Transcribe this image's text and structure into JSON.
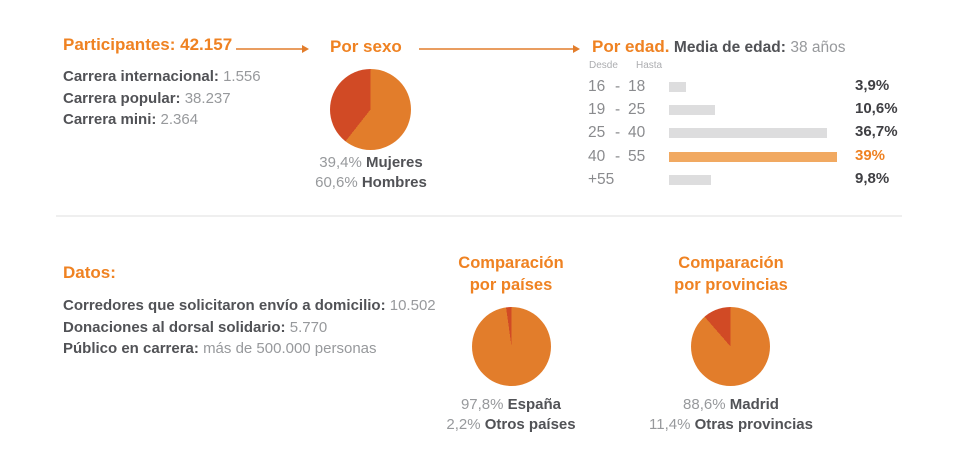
{
  "colors": {
    "heading_orange": "#EF8222",
    "pie_orange": "#E27D2B",
    "pie_red": "#D14A25",
    "bar_highlight": "#F1A961",
    "bar_gray": "#DDDDDE",
    "label_dark": "#515256",
    "value_gray": "#97999C",
    "age_num_gray": "#8A8B8E",
    "pct_dark": "#3F3F43",
    "col_header_gray": "#ACADB0",
    "divider": "#EFEFEF"
  },
  "top": {
    "participants": {
      "title": "Participantes: 42.157",
      "rows": [
        {
          "label": "Carrera internacional:",
          "value": "1.556"
        },
        {
          "label": "Carrera popular:",
          "value": "38.237"
        },
        {
          "label": "Carrera mini:",
          "value": "2.364"
        }
      ]
    },
    "by_sex": {
      "title": "Por sexo",
      "slices": [
        {
          "label": "Hombres",
          "value": 60.6,
          "color": "#E27D2B"
        },
        {
          "label": "Mujeres",
          "value": 39.4,
          "color": "#D14A25"
        }
      ],
      "legend": [
        {
          "pct": "39,4%",
          "label": "Mujeres"
        },
        {
          "pct": "60,6%",
          "label": "Hombres"
        }
      ]
    },
    "by_age": {
      "title": "Por edad.",
      "avg_label": "Media de edad:",
      "avg_value": "38 años",
      "col_from": "Desde",
      "col_to": "Hasta",
      "rows": [
        {
          "from": "16",
          "dash": "-",
          "to": "18",
          "value": 3.9,
          "pct": "3,9%",
          "highlight": false
        },
        {
          "from": "19",
          "dash": "-",
          "to": "25",
          "value": 10.6,
          "pct": "10,6%",
          "highlight": false
        },
        {
          "from": "25",
          "dash": "-",
          "to": "40",
          "value": 36.7,
          "pct": "36,7%",
          "highlight": false
        },
        {
          "from": "40",
          "dash": "-",
          "to": "55",
          "value": 39,
          "pct": "39%",
          "highlight": true
        },
        {
          "from": "+55",
          "dash": "",
          "to": "",
          "value": 9.8,
          "pct": "9,8%",
          "highlight": false
        }
      ]
    }
  },
  "bottom": {
    "datos": {
      "title": "Datos:",
      "rows": [
        {
          "label": "Corredores que solicitaron envío a domicilio:",
          "value": "10.502"
        },
        {
          "label": "Donaciones al dorsal solidario:",
          "value": "5.770"
        },
        {
          "label": "Público en carrera:",
          "value": "más de 500.000 personas"
        }
      ]
    },
    "countries": {
      "title_line1": "Comparación",
      "title_line2": "por países",
      "slices": [
        {
          "label": "España",
          "value": 97.8,
          "color": "#E27D2B"
        },
        {
          "label": "Otros países",
          "value": 2.2,
          "color": "#D14A25"
        }
      ],
      "legend": [
        {
          "pct": "97,8%",
          "label": "España"
        },
        {
          "pct": "2,2%",
          "label": "Otros países"
        }
      ]
    },
    "provinces": {
      "title_line1": "Comparación",
      "title_line2": "por provincias",
      "slices": [
        {
          "label": "Madrid",
          "value": 88.6,
          "color": "#E27D2B"
        },
        {
          "label": "Otras provincias",
          "value": 11.4,
          "color": "#D14A25"
        }
      ],
      "legend": [
        {
          "pct": "88,6%",
          "label": "Madrid"
        },
        {
          "pct": "11,4%",
          "label": "Otras provincias"
        }
      ]
    }
  },
  "chart_data": [
    {
      "type": "pie",
      "title": "Por sexo",
      "labels": [
        "Hombres",
        "Mujeres"
      ],
      "values": [
        60.6,
        39.4
      ],
      "colors": [
        "#E27D2B",
        "#D14A25"
      ],
      "annotations": [
        "60,6% Hombres",
        "39,4% Mujeres"
      ],
      "legend_position": "below"
    },
    {
      "type": "bar",
      "orientation": "horizontal",
      "title": "Por edad. Media de edad: 38 años",
      "categories": [
        "16 - 18",
        "19 - 25",
        "25 - 40",
        "40 - 55",
        "+55"
      ],
      "values": [
        3.9,
        10.6,
        36.7,
        39,
        9.8
      ],
      "data_labels": [
        "3,9%",
        "10,6%",
        "36,7%",
        "39%",
        "9,8%"
      ],
      "highlight_category": "40 - 55",
      "xlim": [
        0,
        40
      ],
      "grid": false
    },
    {
      "type": "pie",
      "title": "Comparación por países",
      "labels": [
        "España",
        "Otros países"
      ],
      "values": [
        97.8,
        2.2
      ],
      "colors": [
        "#E27D2B",
        "#D14A25"
      ],
      "annotations": [
        "97,8% España",
        "2,2% Otros países"
      ],
      "legend_position": "below"
    },
    {
      "type": "pie",
      "title": "Comparación por provincias",
      "labels": [
        "Madrid",
        "Otras provincias"
      ],
      "values": [
        88.6,
        11.4
      ],
      "colors": [
        "#E27D2B",
        "#D14A25"
      ],
      "annotations": [
        "88,6% Madrid",
        "11,4% Otras provincias"
      ],
      "legend_position": "below"
    }
  ]
}
